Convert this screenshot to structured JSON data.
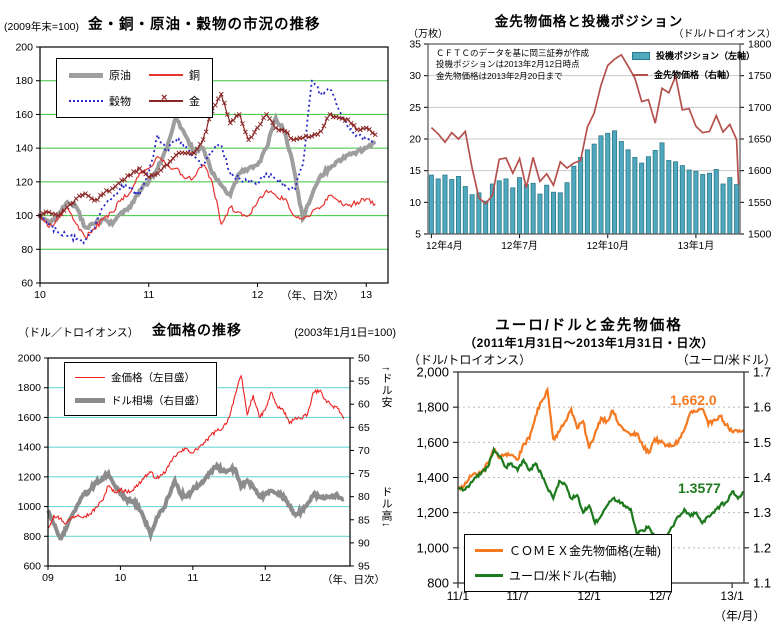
{
  "chart_data": [
    {
      "id": "commodities",
      "type": "line",
      "title": "金・銅・原油・穀物の市況の推移",
      "index_note": "(2009年末=100)",
      "x_caption": "（年、日次）",
      "x_tick_labels": [
        "10",
        "11",
        "12",
        "13"
      ],
      "x_tick_years": [
        2010,
        2011,
        2012,
        2013
      ],
      "xlim": [
        2010,
        2013.2
      ],
      "ylim": [
        60,
        200
      ],
      "y_ticks": [
        200,
        180,
        160,
        140,
        120,
        100,
        80,
        60
      ],
      "grid_color": "#3cc43c",
      "x": [
        2010.0,
        2010.083,
        2010.167,
        2010.25,
        2010.333,
        2010.417,
        2010.5,
        2010.583,
        2010.667,
        2010.75,
        2010.833,
        2010.917,
        2011.0,
        2011.083,
        2011.167,
        2011.25,
        2011.333,
        2011.417,
        2011.5,
        2011.583,
        2011.667,
        2011.75,
        2011.833,
        2011.917,
        2012.0,
        2012.083,
        2012.167,
        2012.25,
        2012.333,
        2012.417,
        2012.5,
        2012.583,
        2012.667,
        2012.75,
        2012.833,
        2012.917,
        2013.0,
        2013.083
      ],
      "series": [
        {
          "name": "原油",
          "color": "#9e9e9e",
          "width": 4,
          "style": "solid",
          "values": [
            100,
            96,
            100,
            108,
            105,
            93,
            95,
            98,
            95,
            102,
            105,
            115,
            120,
            128,
            140,
            158,
            148,
            138,
            140,
            125,
            118,
            112,
            125,
            128,
            130,
            140,
            158,
            150,
            128,
            98,
            112,
            124,
            128,
            133,
            136,
            138,
            140,
            143
          ]
        },
        {
          "name": "銅",
          "color": "#e83232",
          "width": 1.2,
          "style": "solid",
          "values": [
            100,
            93,
            98,
            105,
            95,
            87,
            92,
            98,
            102,
            110,
            114,
            125,
            128,
            135,
            130,
            128,
            122,
            123,
            130,
            120,
            95,
            105,
            102,
            100,
            108,
            115,
            112,
            110,
            100,
            98,
            102,
            105,
            112,
            108,
            106,
            108,
            110,
            107
          ]
        },
        {
          "name": "穀物",
          "color": "#2a2ac8",
          "width": 1.8,
          "style": "dotted",
          "values": [
            100,
            95,
            90,
            88,
            86,
            85,
            92,
            105,
            110,
            118,
            115,
            112,
            125,
            148,
            138,
            145,
            142,
            135,
            130,
            138,
            142,
            125,
            122,
            120,
            120,
            125,
            122,
            118,
            115,
            130,
            180,
            172,
            175,
            162,
            152,
            148,
            145,
            143
          ]
        },
        {
          "name": "金",
          "color": "#8b2626",
          "width": 1.2,
          "style": "xmarker",
          "values": [
            100,
            102,
            100,
            105,
            110,
            113,
            109,
            113,
            116,
            121,
            124,
            128,
            123,
            125,
            130,
            136,
            137,
            137,
            145,
            162,
            172,
            155,
            160,
            145,
            152,
            160,
            152,
            150,
            145,
            146,
            147,
            150,
            160,
            158,
            157,
            151,
            152,
            148
          ]
        }
      ]
    },
    {
      "id": "positions",
      "type": "bar+line",
      "title": "金先物価格と投機ポジション",
      "left_unit": "（万枚）",
      "right_unit": "（ドル/トロイオンス）",
      "note_lines": [
        "ＣＦＴＣのデータを基に岡三証券が作成",
        "投機ポジションは2013年2月12日時点",
        "金先物価格は2013年2月20日まで"
      ],
      "legend": [
        {
          "name": "投機ポジション（左軸）"
        },
        {
          "name": "金先物価格（右軸）"
        }
      ],
      "left_ticks": [
        35,
        30,
        25,
        20,
        15,
        10,
        5
      ],
      "right_ticks": [
        1800,
        1750,
        1700,
        1650,
        1600,
        1550,
        1500
      ],
      "left_lim": [
        5,
        35
      ],
      "right_lim": [
        1500,
        1800
      ],
      "grid_ticks": [
        10,
        15,
        20,
        25,
        30
      ],
      "x_tick_labels": [
        "12年4月",
        "12年7月",
        "12年10月",
        "13年1月"
      ],
      "x_tick_bar_index": [
        0,
        13,
        26,
        39
      ],
      "bar_color": "#4fa8bd",
      "bar_edge": "#2d7a8c",
      "line_color": "#b5514d",
      "bar_values": [
        14.3,
        13.7,
        14.3,
        13.6,
        14.1,
        12.5,
        11.2,
        11.5,
        10.2,
        12.9,
        13.4,
        13.7,
        12.3,
        13.9,
        12.8,
        13.0,
        11.3,
        12.7,
        11.6,
        11.5,
        13.1,
        15.7,
        17.1,
        18.3,
        19.2,
        20.5,
        20.9,
        21.3,
        19.6,
        18.3,
        17.1,
        16.2,
        17.2,
        18.2,
        19.4,
        16.6,
        16.4,
        15.8,
        15.1,
        14.9,
        14.4,
        14.6,
        15.2,
        12.9,
        13.9,
        12.8
      ],
      "line_values": [
        1668,
        1658,
        1645,
        1660,
        1650,
        1662,
        1604,
        1557,
        1548,
        1561,
        1618,
        1620,
        1596,
        1619,
        1573,
        1621,
        1583,
        1595,
        1577,
        1614,
        1604,
        1612,
        1616,
        1669,
        1691,
        1735,
        1766,
        1776,
        1783,
        1765,
        1746,
        1709,
        1712,
        1675,
        1730,
        1723,
        1749,
        1696,
        1698,
        1670,
        1660,
        1662,
        1687,
        1661,
        1673,
        1649,
        1578
      ]
    },
    {
      "id": "gold_price",
      "type": "line",
      "title": "金価格の推移",
      "left_unit": "（ドル／トロイオンス）",
      "index_note": "(2003年1月1日=100)",
      "x_caption": "（年、日次）",
      "legend": [
        {
          "name": "金価格（左目盛）"
        },
        {
          "name": "ドル相場（右目盛）"
        }
      ],
      "dollar_weak_label": "↑ドル安",
      "dollar_strong_label": "ドル高↓",
      "left_ticks": [
        2000,
        1800,
        1600,
        1400,
        1200,
        1000,
        800,
        600
      ],
      "right_ticks": [
        50,
        55,
        60,
        65,
        70,
        75,
        80,
        85,
        90,
        95
      ],
      "left_lim": [
        600,
        2000
      ],
      "right_lim": [
        50,
        95
      ],
      "grid_color": "#6fd8d8",
      "x_tick_labels": [
        "09",
        "10",
        "11",
        "12"
      ],
      "x_tick_years": [
        2009,
        2010,
        2011,
        2012
      ],
      "xlim": [
        2009,
        2013.17
      ],
      "x": [
        2009.0,
        2009.083,
        2009.167,
        2009.25,
        2009.333,
        2009.417,
        2009.5,
        2009.583,
        2009.667,
        2009.75,
        2009.833,
        2009.917,
        2010.0,
        2010.083,
        2010.167,
        2010.25,
        2010.333,
        2010.417,
        2010.5,
        2010.583,
        2010.667,
        2010.75,
        2010.833,
        2010.917,
        2011.0,
        2011.083,
        2011.167,
        2011.25,
        2011.333,
        2011.417,
        2011.5,
        2011.583,
        2011.667,
        2011.75,
        2011.833,
        2011.917,
        2012.0,
        2012.083,
        2012.167,
        2012.25,
        2012.333,
        2012.417,
        2012.5,
        2012.583,
        2012.667,
        2012.75,
        2012.833,
        2012.917,
        2013.0,
        2013.083
      ],
      "gold_color": "#ef2020",
      "dollar_color": "#8c8c8c",
      "gold_values": [
        855,
        940,
        920,
        885,
        928,
        945,
        935,
        950,
        995,
        1040,
        1140,
        1095,
        1115,
        1100,
        1110,
        1150,
        1200,
        1230,
        1190,
        1215,
        1270,
        1340,
        1370,
        1390,
        1360,
        1400,
        1430,
        1480,
        1510,
        1530,
        1600,
        1750,
        1880,
        1620,
        1750,
        1600,
        1650,
        1770,
        1670,
        1650,
        1560,
        1600,
        1590,
        1620,
        1770,
        1780,
        1720,
        1680,
        1660,
        1590
      ],
      "dollar_values": [
        83,
        86,
        89,
        87,
        84,
        81.5,
        79.5,
        78.5,
        77,
        76,
        74.9,
        77.5,
        79.5,
        80.5,
        81,
        82,
        85,
        88.3,
        84.5,
        83,
        80,
        76.5,
        79.5,
        80,
        78.5,
        77.5,
        76.2,
        74.5,
        73.2,
        74.5,
        74.2,
        74,
        78,
        76.5,
        78,
        80,
        79.5,
        78.7,
        79.5,
        79.8,
        82,
        84,
        83,
        81.5,
        79.5,
        80,
        80.3,
        79.8,
        79.8,
        80.5
      ]
    },
    {
      "id": "euro_gold",
      "type": "line",
      "title": "ユーロ/ドルと金先物価格",
      "subtitle": "（2011年1月31日～2013年1月31日・日次）",
      "left_unit": "（ドル/トロイオンス）",
      "right_unit": "（ユーロ/米ドル）",
      "x_caption": "（年/月）",
      "legend": [
        {
          "name": "ＣＯＭＥＸ金先物価格(左軸)"
        },
        {
          "name": "ユーロ/米ドル(右軸)"
        }
      ],
      "gold_annotation": "1,662.0",
      "euro_annotation": "1.3577",
      "left_tick_labels": [
        "2,000",
        "1,800",
        "1,600",
        "1,400",
        "1,200",
        "1,000",
        "800"
      ],
      "left_ticks": [
        2000,
        1800,
        1600,
        1400,
        1200,
        1000,
        800
      ],
      "right_tick_labels": [
        "1.7",
        "1.6",
        "1.5",
        "1.4",
        "1.3",
        "1.2",
        "1.1"
      ],
      "left_lim": [
        800,
        2000
      ],
      "right_lim": [
        1.1,
        1.7
      ],
      "grid_ticks": [
        1000,
        1200,
        1400,
        1600,
        1800
      ],
      "x_tick_labels": [
        "11/1",
        "11/7",
        "12/1",
        "12/7",
        "13/1"
      ],
      "x_tick_months": [
        0,
        5,
        11,
        17,
        23
      ],
      "xlim": [
        0,
        24
      ],
      "gold_color": "#f47920",
      "euro_color": "#1e7a1e",
      "gold_values": [
        1335,
        1350,
        1410,
        1420,
        1430,
        1480,
        1560,
        1510,
        1535,
        1530,
        1500,
        1590,
        1620,
        1750,
        1830,
        1900,
        1620,
        1660,
        1720,
        1790,
        1680,
        1720,
        1565,
        1650,
        1740,
        1720,
        1780,
        1700,
        1670,
        1640,
        1650,
        1580,
        1540,
        1620,
        1600,
        1580,
        1580,
        1610,
        1670,
        1770,
        1775,
        1790,
        1700,
        1730,
        1750,
        1700,
        1660,
        1660,
        1662
      ],
      "euro_values": [
        1.37,
        1.365,
        1.38,
        1.4,
        1.415,
        1.43,
        1.48,
        1.46,
        1.43,
        1.44,
        1.42,
        1.45,
        1.42,
        1.44,
        1.41,
        1.37,
        1.34,
        1.39,
        1.38,
        1.34,
        1.35,
        1.3,
        1.32,
        1.27,
        1.29,
        1.32,
        1.34,
        1.335,
        1.32,
        1.31,
        1.24,
        1.25,
        1.26,
        1.23,
        1.21,
        1.23,
        1.26,
        1.29,
        1.31,
        1.29,
        1.3,
        1.27,
        1.29,
        1.3,
        1.32,
        1.33,
        1.36,
        1.34,
        1.3577
      ]
    }
  ]
}
